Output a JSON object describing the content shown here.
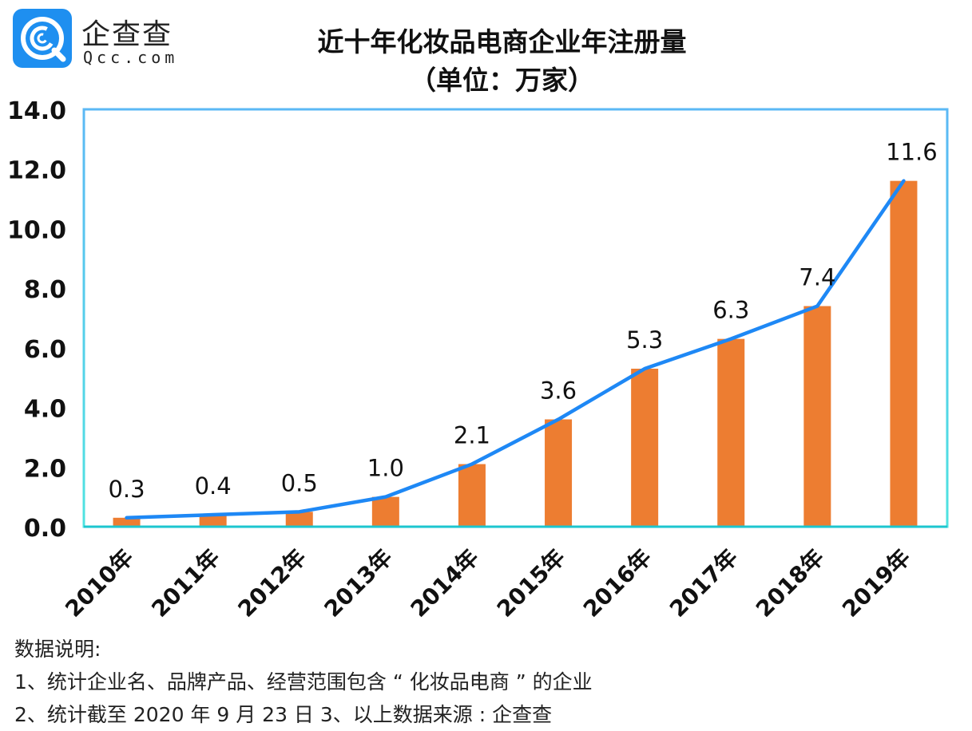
{
  "logo": {
    "name_cn": "企查查",
    "domain": "Qcc.com",
    "badge_color": "#1e8ff0"
  },
  "chart_data": {
    "type": "bar",
    "title": "近十年化妆品电商企业年注册量",
    "subtitle": "（单位：万家）",
    "xlabel": "",
    "ylabel": "",
    "categories": [
      "2010年",
      "2011年",
      "2012年",
      "2013年",
      "2014年",
      "2015年",
      "2016年",
      "2017年",
      "2018年",
      "2019年"
    ],
    "values": [
      0.3,
      0.4,
      0.5,
      1.0,
      2.1,
      3.6,
      5.3,
      6.3,
      7.4,
      11.6
    ],
    "value_labels": [
      "0.3",
      "0.4",
      "0.5",
      "1.0",
      "2.1",
      "3.6",
      "5.3",
      "6.3",
      "7.4",
      "11.6"
    ],
    "overlay_line": {
      "type": "line",
      "note": "trend line through the same values",
      "values": [
        0.3,
        0.4,
        0.5,
        1.0,
        2.1,
        3.6,
        5.3,
        6.3,
        7.4,
        11.6
      ]
    },
    "ylim": [
      0,
      14
    ],
    "yticks": [
      0,
      2,
      4,
      6,
      8,
      10,
      12,
      14
    ],
    "ytick_labels": [
      "0.0",
      "2.0",
      "4.0",
      "6.0",
      "8.0",
      "10.0",
      "12.0",
      "14.0"
    ],
    "grid": false,
    "legend": "none",
    "colors": {
      "bar": "#ed7d31",
      "line": "#1e88f5",
      "frame_top": "#5bb8f5",
      "frame_bottom": "#1cc6cf",
      "text": "#111111"
    }
  },
  "notes": {
    "heading": "数据说明:",
    "line1": "1、统计企业名、品牌产品、经营范围包含 “ 化妆品电商 ” 的企业",
    "line2": "2、统计截至 2020 年 9 月 23 日  3、以上数据来源 : 企查查"
  }
}
